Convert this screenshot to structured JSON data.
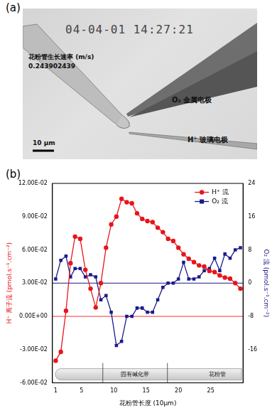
{
  "panel_labels": [
    "(a)",
    "(b)"
  ],
  "panel_a": {
    "timestamp": "04-04-01 14:27:21",
    "rate_label": "花粉管生长速率 (m/s)",
    "rate_value": "0.243902439",
    "o2_electrode": "O₂ 金属电极",
    "h_electrode": "H⁺ 玻璃电极",
    "scale_bar": "10 μm"
  },
  "chart_data": {
    "type": "line",
    "x_label": "花粉管长度 (10μm)",
    "y_label": "H⁺ 离子流 (pmol.s⁻¹.cm⁻²)",
    "y2_label": "O₂ 流 (pmol.s⁻¹.cm⁻²)",
    "x": [
      1,
      1.8,
      2.6,
      3.3,
      4,
      4.8,
      5.6,
      6.4,
      7.2,
      8,
      8.8,
      9.6,
      10.4,
      11.2,
      12,
      12.8,
      13.6,
      14.4,
      15.2,
      16,
      16.8,
      17.6,
      18.4,
      19.2,
      20,
      20.8,
      21.6,
      22.4,
      23.2,
      24,
      24.8,
      25.6,
      26.4,
      27.2,
      28,
      28.8,
      29.6
    ],
    "series": [
      {
        "name": "H⁺ 流",
        "color": "#e8141b",
        "marker": "circle",
        "axis": "y",
        "values": [
          -0.04,
          -0.032,
          0.005,
          0.048,
          0.072,
          0.07,
          0.042,
          0.025,
          0.008,
          0.03,
          0.062,
          0.083,
          0.09,
          0.106,
          0.103,
          0.102,
          0.093,
          0.088,
          0.086,
          0.085,
          0.08,
          0.076,
          0.07,
          0.068,
          0.062,
          0.056,
          0.052,
          0.049,
          0.046,
          0.045,
          0.041,
          0.04,
          0.037,
          0.035,
          0.034,
          0.03,
          0.025
        ]
      },
      {
        "name": "O₂ 流",
        "color": "#1a1a8c",
        "marker": "square",
        "axis": "y2",
        "values": [
          1,
          5.5,
          6.5,
          1.5,
          3.5,
          3.5,
          1.5,
          2,
          1.5,
          -4,
          -3,
          -7,
          -15,
          -14,
          -8,
          -8,
          -6,
          -6,
          -7,
          -7,
          -4,
          -1,
          0,
          0,
          1,
          5,
          1,
          1,
          1.5,
          3,
          3.5,
          6,
          3,
          7,
          6,
          8,
          8.5
        ]
      }
    ],
    "xlim": [
      0.5,
      30
    ],
    "xticks": [
      1,
      5,
      10,
      15,
      20,
      25
    ],
    "ylim": [
      -0.06,
      0.12
    ],
    "yticks": [
      {
        "value": -0.06,
        "label": "-6.00E-02"
      },
      {
        "value": -0.03,
        "label": "-3.00E-02"
      },
      {
        "value": 0,
        "label": "0.00E+00"
      },
      {
        "value": 0.03,
        "label": "3.00E-02"
      },
      {
        "value": 0.06,
        "label": "6.00E-02"
      },
      {
        "value": 0.09,
        "label": "9.00E-02"
      },
      {
        "value": 0.12,
        "label": "12.00E-02"
      }
    ],
    "y2lim": [
      -24,
      24
    ],
    "y2ticks": [
      -16,
      -8,
      0,
      8,
      16,
      24
    ],
    "reference_lines": [
      {
        "axis": "y",
        "value": 0,
        "color": "#ff3030"
      },
      {
        "axis": "y2",
        "value": 0,
        "color": "#1a1a8c"
      }
    ],
    "annotations": {
      "dividers": [
        8.3,
        18.3
      ],
      "labels": [
        {
          "text": "固有碱化带",
          "x": 13.3
        },
        {
          "text": "花粉管",
          "x": 26
        }
      ]
    },
    "legend": "upper right",
    "grid": false
  }
}
